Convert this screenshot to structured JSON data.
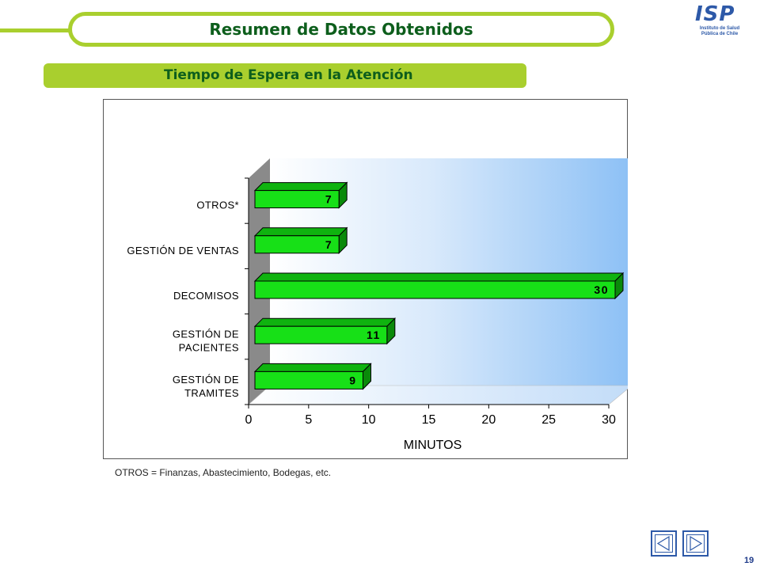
{
  "header": {
    "title": "Resumen de Datos Obtenidos",
    "logo_text": "ISP",
    "logo_sub_lines": [
      "Instituto de Salud",
      "Pública de Chile"
    ]
  },
  "section": {
    "subtitle": "Tiempo de Espera en la Atención"
  },
  "chart_data": {
    "type": "bar",
    "orientation": "horizontal",
    "style": "3d",
    "categories": [
      [
        "GESTIÓN DE",
        "TRAMITES"
      ],
      [
        "GESTIÓN DE",
        "PACIENTES"
      ],
      [
        "DECOMISOS"
      ],
      [
        "GESTIÓN DE VENTAS"
      ],
      [
        "OTROS*"
      ]
    ],
    "values": [
      9,
      11,
      30,
      7,
      7
    ],
    "data_labels": [
      "9",
      "11",
      "30",
      "7",
      "7"
    ],
    "xlabel": "MINUTOS",
    "xlim": [
      0,
      30
    ],
    "xticks": [
      "0",
      "5",
      "10",
      "15",
      "20",
      "25",
      "30"
    ],
    "bar_color": "#17e017",
    "wall_color": "#8cc0f5"
  },
  "footnote": "OTROS  = Finanzas,  Abastecimiento, Bodegas, etc.",
  "footer": {
    "page_number": "19"
  }
}
